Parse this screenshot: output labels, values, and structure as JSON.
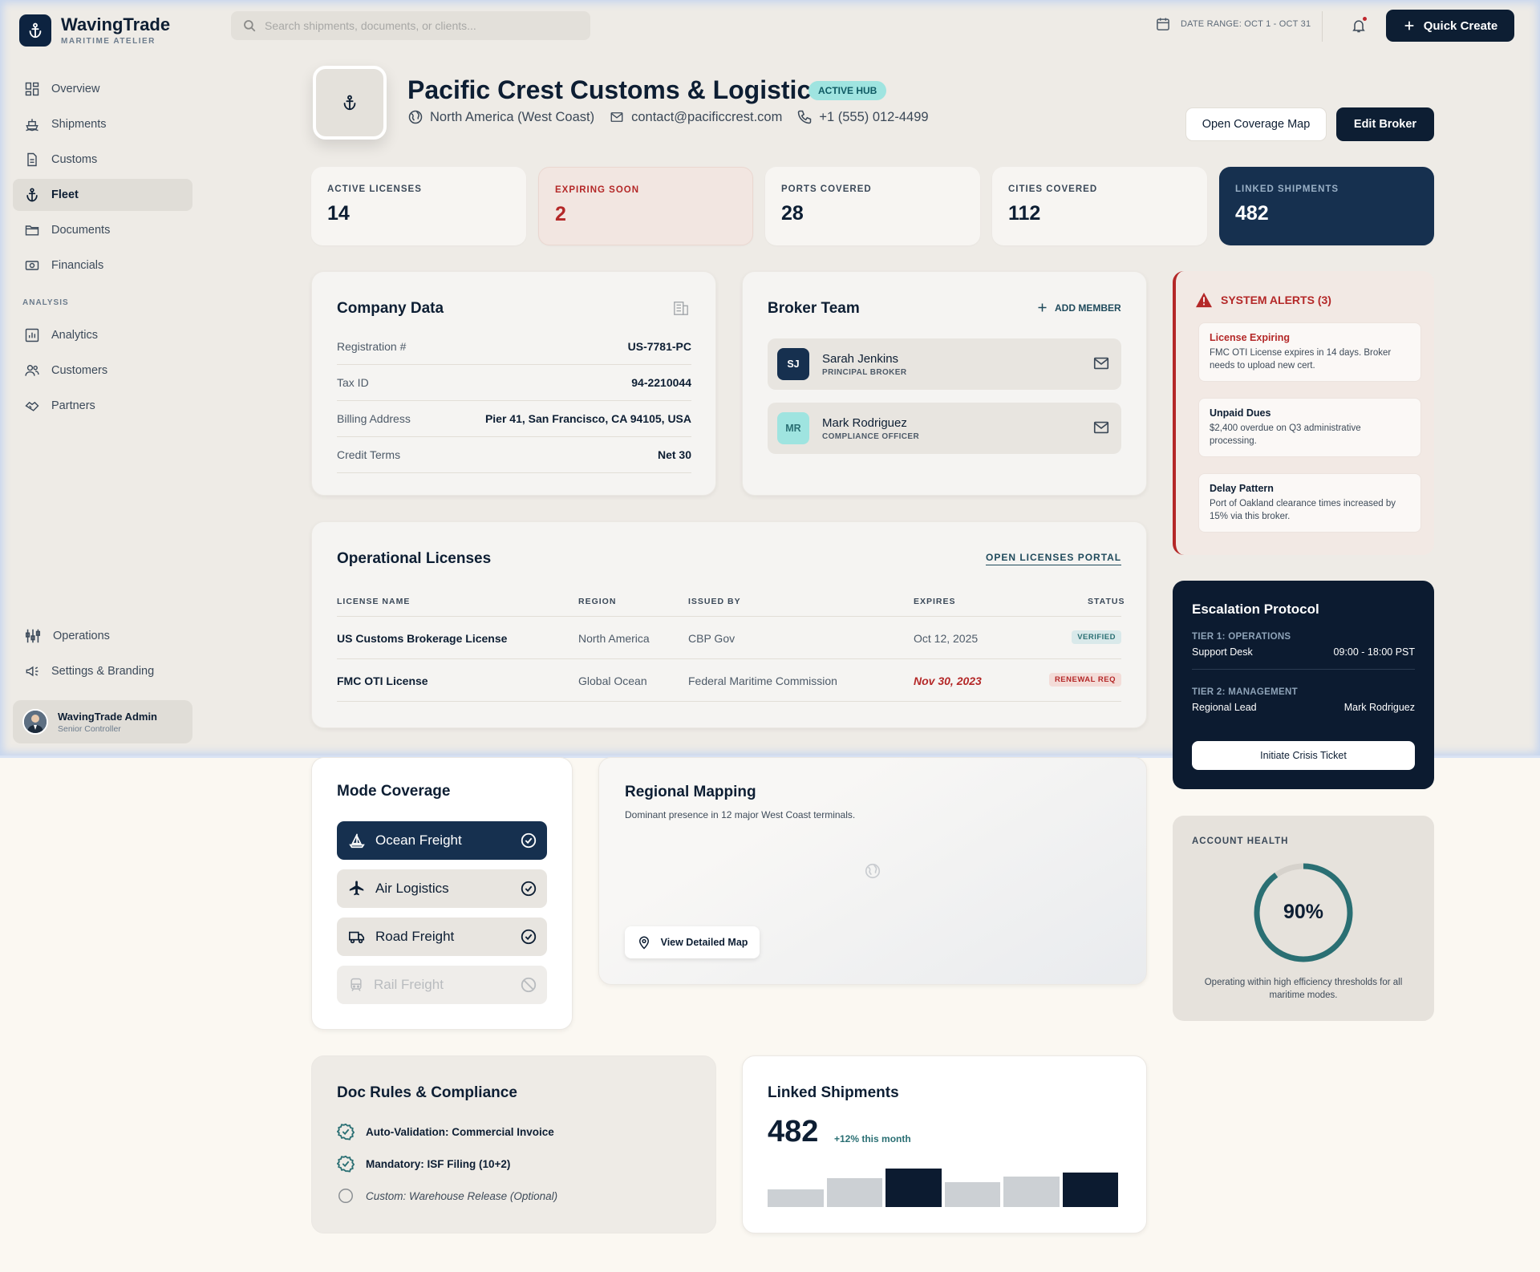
{
  "brand": {
    "name": "WavingTrade",
    "subtitle": "MARITIME ATELIER"
  },
  "search": {
    "placeholder": "Search shipments, documents, or clients..."
  },
  "topbar": {
    "date_range": "DATE RANGE: OCT 1 - OCT 31",
    "quick_create": "Quick Create"
  },
  "sidebar": {
    "items": [
      {
        "label": "Overview",
        "icon": "grid-icon"
      },
      {
        "label": "Shipments",
        "icon": "ship-icon"
      },
      {
        "label": "Customs",
        "icon": "document-icon"
      },
      {
        "label": "Fleet",
        "icon": "anchor-icon",
        "active": true
      },
      {
        "label": "Documents",
        "icon": "folder-icon"
      },
      {
        "label": "Financials",
        "icon": "money-icon"
      }
    ],
    "analysis_label": "ANALYSIS",
    "analysis_items": [
      {
        "label": "Analytics",
        "icon": "chart-icon"
      },
      {
        "label": "Customers",
        "icon": "users-icon"
      },
      {
        "label": "Partners",
        "icon": "handshake-icon"
      }
    ],
    "bottom_items": [
      {
        "label": "Operations",
        "icon": "sliders-icon"
      },
      {
        "label": "Settings & Branding",
        "icon": "megaphone-icon"
      }
    ],
    "user": {
      "name": "WavingTrade Admin",
      "role": "Senior Controller"
    }
  },
  "header": {
    "company_name": "Pacific Crest Customs & Logistics",
    "badge": "ACTIVE HUB",
    "region": "North America (West Coast)",
    "email": "contact@pacificcrest.com",
    "phone": "+1 (555) 012-4499",
    "open_map_button": "Open Coverage Map",
    "edit_button": "Edit Broker"
  },
  "stats": [
    {
      "label": "ACTIVE LICENSES",
      "value": "14"
    },
    {
      "label": "EXPIRING SOON",
      "value": "2"
    },
    {
      "label": "PORTS COVERED",
      "value": "28"
    },
    {
      "label": "CITIES COVERED",
      "value": "112"
    },
    {
      "label": "LINKED SHIPMENTS",
      "value": "482"
    }
  ],
  "company_data": {
    "title": "Company Data",
    "rows": [
      {
        "key": "Registration #",
        "value": "US-7781-PC"
      },
      {
        "key": "Tax ID",
        "value": "94-2210044"
      },
      {
        "key": "Billing Address",
        "value": "Pier 41, San Francisco, CA 94105, USA"
      },
      {
        "key": "Credit Terms",
        "value": "Net 30"
      }
    ]
  },
  "broker_team": {
    "title": "Broker Team",
    "add_member": "ADD MEMBER",
    "members": [
      {
        "initials": "SJ",
        "name": "Sarah Jenkins",
        "role": "PRINCIPAL BROKER"
      },
      {
        "initials": "MR",
        "name": "Mark Rodriguez",
        "role": "COMPLIANCE OFFICER"
      }
    ]
  },
  "alerts": {
    "title": "SYSTEM ALERTS (3)",
    "items": [
      {
        "heading": "License Expiring",
        "body": "FMC OTI License expires in 14 days. Broker needs to upload new cert."
      },
      {
        "heading": "Unpaid Dues",
        "body": "$2,400 overdue on Q3 administrative processing."
      },
      {
        "heading": "Delay Pattern",
        "body": "Port of Oakland clearance times increased by 15% via this broker."
      }
    ]
  },
  "licenses": {
    "title": "Operational Licenses",
    "portal_link": "OPEN LICENSES PORTAL",
    "columns": [
      "LICENSE NAME",
      "REGION",
      "ISSUED BY",
      "EXPIRES",
      "STATUS"
    ],
    "rows": [
      {
        "name": "US Customs Brokerage License",
        "region": "North America",
        "issued_by": "CBP Gov",
        "expires": "Oct 12, 2025",
        "status": "VERIFIED"
      },
      {
        "name": "FMC OTI License",
        "region": "Global Ocean",
        "issued_by": "Federal Maritime Commission",
        "expires": "Nov 30, 2023",
        "status": "RENEWAL REQ"
      }
    ]
  },
  "escalation": {
    "title": "Escalation Protocol",
    "tiers": [
      {
        "label": "TIER 1: OPERATIONS",
        "role": "Support Desk",
        "detail": "09:00 - 18:00 PST"
      },
      {
        "label": "TIER 2: MANAGEMENT",
        "role": "Regional Lead",
        "detail": "Mark Rodriguez"
      }
    ],
    "button": "Initiate Crisis Ticket"
  },
  "mode_coverage": {
    "title": "Mode Coverage",
    "modes": [
      {
        "label": "Ocean Freight",
        "state": "selected"
      },
      {
        "label": "Air Logistics",
        "state": "enabled"
      },
      {
        "label": "Road Freight",
        "state": "enabled"
      },
      {
        "label": "Rail Freight",
        "state": "disabled"
      }
    ]
  },
  "regional_mapping": {
    "title": "Regional Mapping",
    "subtitle": "Dominant presence in 12 major West Coast terminals.",
    "button": "View Detailed Map"
  },
  "account_health": {
    "label": "ACCOUNT HEALTH",
    "percent": 90,
    "percent_text": "90%",
    "caption": "Operating within high efficiency thresholds for all maritime modes."
  },
  "doc_rules": {
    "title": "Doc Rules & Compliance",
    "rules": [
      {
        "text": "Auto-Validation: Commercial Invoice",
        "checked": true
      },
      {
        "text": "Mandatory: ISF Filing (10+2)",
        "checked": true
      },
      {
        "text": "Custom: Warehouse Release (Optional)",
        "checked": false
      }
    ]
  },
  "linked_shipments": {
    "title": "Linked Shipments",
    "value": "482",
    "change": "+12% this month",
    "bars": [
      {
        "value": 0.45,
        "highlight": false
      },
      {
        "value": 0.75,
        "highlight": false
      },
      {
        "value": 1.0,
        "highlight": true
      },
      {
        "value": 0.65,
        "highlight": false
      },
      {
        "value": 0.8,
        "highlight": false
      },
      {
        "value": 0.9,
        "highlight": true
      }
    ]
  },
  "colors": {
    "navy": "#0d1e33",
    "accent_teal": "#2a6f73",
    "alert_red": "#b42828",
    "badge_cyan": "#9fe4e0"
  }
}
